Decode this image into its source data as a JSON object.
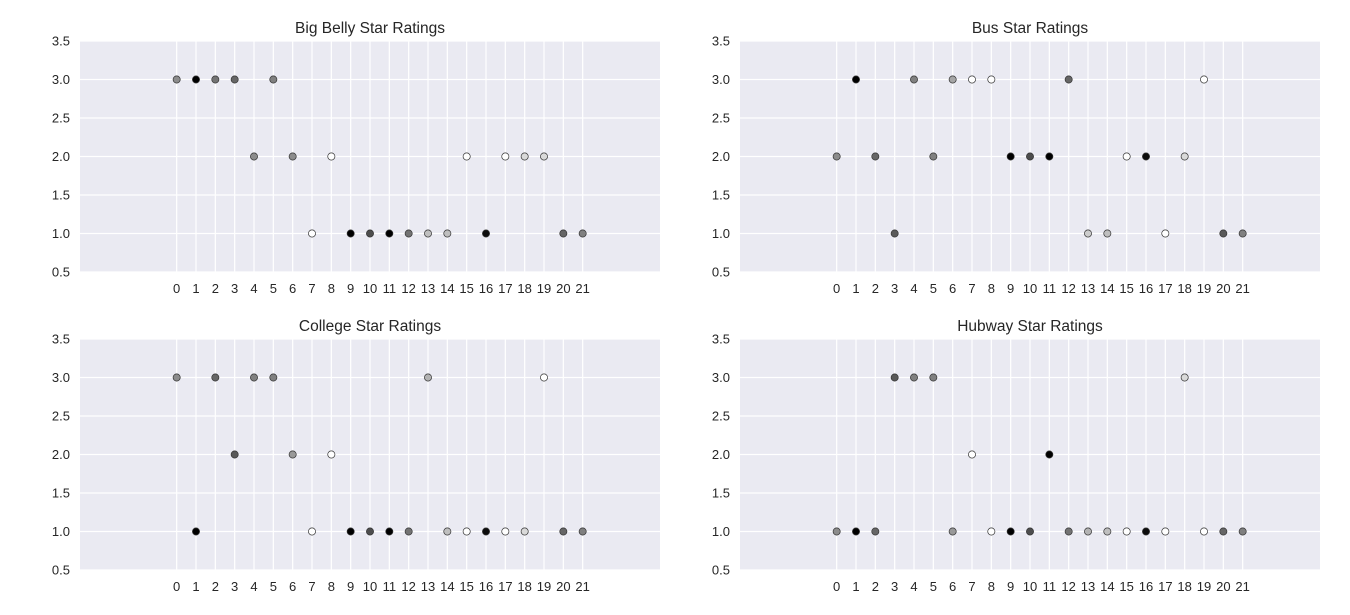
{
  "chart_data": [
    {
      "type": "scatter",
      "title": "Big Belly Star Ratings",
      "x": [
        0,
        1,
        2,
        3,
        4,
        5,
        6,
        7,
        8,
        9,
        10,
        11,
        12,
        13,
        14,
        15,
        16,
        17,
        18,
        19,
        20,
        21
      ],
      "y": [
        3,
        3,
        3,
        3,
        2,
        3,
        2,
        1,
        2,
        1,
        1,
        1,
        1,
        1,
        1,
        2,
        1,
        2,
        2,
        2,
        1,
        1
      ],
      "shade": [
        0.55,
        0.0,
        0.45,
        0.4,
        0.55,
        0.5,
        0.55,
        1.0,
        1.0,
        0.0,
        0.3,
        0.0,
        0.45,
        0.75,
        0.75,
        1.0,
        0.05,
        1.0,
        0.85,
        0.85,
        0.4,
        0.5
      ],
      "xticks": [
        "0",
        "1",
        "2",
        "3",
        "4",
        "5",
        "6",
        "7",
        "8",
        "9",
        "10",
        "11",
        "12",
        "13",
        "14",
        "15",
        "16",
        "17",
        "18",
        "19",
        "20",
        "21"
      ],
      "yticks": [
        "0.5",
        "1.0",
        "1.5",
        "2.0",
        "2.5",
        "3.0",
        "3.5"
      ],
      "xlim": [
        -5,
        25
      ],
      "ylim": [
        0.5,
        3.5
      ],
      "grid": true
    },
    {
      "type": "scatter",
      "title": "Bus Star Ratings",
      "x": [
        0,
        1,
        2,
        3,
        4,
        5,
        6,
        7,
        8,
        9,
        10,
        11,
        12,
        13,
        14,
        15,
        16,
        17,
        18,
        19,
        20,
        21
      ],
      "y": [
        2,
        3,
        2,
        1,
        3,
        2,
        3,
        3,
        3,
        2,
        2,
        2,
        3,
        1,
        1,
        2,
        2,
        1,
        2,
        3,
        1,
        1
      ],
      "shade": [
        0.55,
        0.0,
        0.4,
        0.35,
        0.5,
        0.5,
        0.65,
        1.0,
        1.0,
        0.0,
        0.3,
        0.0,
        0.4,
        0.8,
        0.75,
        1.0,
        0.05,
        1.0,
        0.85,
        1.0,
        0.35,
        0.5
      ],
      "xticks": [
        "0",
        "1",
        "2",
        "3",
        "4",
        "5",
        "6",
        "7",
        "8",
        "9",
        "10",
        "11",
        "12",
        "13",
        "14",
        "15",
        "16",
        "17",
        "18",
        "19",
        "20",
        "21"
      ],
      "yticks": [
        "0.5",
        "1.0",
        "1.5",
        "2.0",
        "2.5",
        "3.0",
        "3.5"
      ],
      "xlim": [
        -5,
        25
      ],
      "ylim": [
        0.5,
        3.5
      ],
      "grid": true
    },
    {
      "type": "scatter",
      "title": "College Star Ratings",
      "x": [
        0,
        1,
        2,
        3,
        4,
        5,
        6,
        7,
        8,
        9,
        10,
        11,
        12,
        13,
        14,
        15,
        16,
        17,
        18,
        19,
        20,
        21
      ],
      "y": [
        3,
        1,
        3,
        2,
        3,
        3,
        2,
        1,
        2,
        1,
        1,
        1,
        1,
        3,
        1,
        1,
        1,
        1,
        1,
        3,
        1,
        1
      ],
      "shade": [
        0.55,
        0.0,
        0.4,
        0.35,
        0.5,
        0.5,
        0.6,
        1.0,
        1.0,
        0.0,
        0.3,
        0.0,
        0.45,
        0.7,
        0.75,
        1.0,
        0.05,
        1.0,
        0.85,
        1.0,
        0.4,
        0.5
      ],
      "xticks": [
        "0",
        "1",
        "2",
        "3",
        "4",
        "5",
        "6",
        "7",
        "8",
        "9",
        "10",
        "11",
        "12",
        "13",
        "14",
        "15",
        "16",
        "17",
        "18",
        "19",
        "20",
        "21"
      ],
      "yticks": [
        "0.5",
        "1.0",
        "1.5",
        "2.0",
        "2.5",
        "3.0",
        "3.5"
      ],
      "xlim": [
        -5,
        25
      ],
      "ylim": [
        0.5,
        3.5
      ],
      "grid": true
    },
    {
      "type": "scatter",
      "title": "Hubway Star Ratings",
      "x": [
        0,
        1,
        2,
        3,
        4,
        5,
        6,
        7,
        8,
        9,
        10,
        11,
        12,
        13,
        14,
        15,
        16,
        17,
        18,
        19,
        20,
        21
      ],
      "y": [
        1,
        1,
        1,
        3,
        3,
        3,
        1,
        2,
        1,
        1,
        1,
        2,
        1,
        1,
        1,
        1,
        1,
        1,
        3,
        1,
        1,
        1
      ],
      "shade": [
        0.55,
        0.0,
        0.4,
        0.35,
        0.5,
        0.5,
        0.6,
        1.0,
        1.0,
        0.0,
        0.3,
        0.0,
        0.45,
        0.7,
        0.75,
        1.0,
        0.05,
        1.0,
        0.85,
        1.0,
        0.4,
        0.5
      ],
      "xticks": [
        "0",
        "1",
        "2",
        "3",
        "4",
        "5",
        "6",
        "7",
        "8",
        "9",
        "10",
        "11",
        "12",
        "13",
        "14",
        "15",
        "16",
        "17",
        "18",
        "19",
        "20",
        "21"
      ],
      "yticks": [
        "0.5",
        "1.0",
        "1.5",
        "2.0",
        "2.5",
        "3.0",
        "3.5"
      ],
      "xlim": [
        -5,
        25
      ],
      "ylim": [
        0.5,
        3.5
      ],
      "grid": true
    }
  ],
  "colors": {
    "plot_background": "#eaeaf2",
    "gridline": "#ffffff",
    "text": "#262626",
    "marker_edge": "#333333"
  }
}
